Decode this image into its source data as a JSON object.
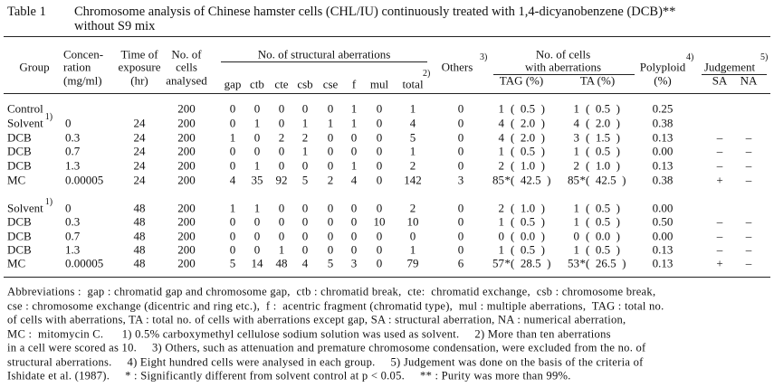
{
  "title": {
    "label": "Table 1",
    "lines": [
      "Chromosome analysis of Chinese hamster cells (CHL/IU) continuously treated with 1,4-dicyanobenzene (DCB)**",
      "without S9 mix"
    ]
  },
  "header": {
    "group": "Group",
    "concentration": [
      "Concen-",
      "ration",
      "(mg/ml)"
    ],
    "time": [
      "Time of",
      "exposure",
      "(hr)"
    ],
    "cells": [
      "No. of",
      "cells",
      "analysed"
    ],
    "aberrations": {
      "title": "No. of structural aberrations",
      "columns": [
        "gap",
        "ctb",
        "cte",
        "csb",
        "cse",
        "f",
        "mul",
        "total"
      ],
      "total_note": "2)"
    },
    "others": {
      "text": "Others",
      "note": "3)"
    },
    "cells_with": {
      "title": [
        "No. of cells",
        "with aberrations"
      ],
      "columns": [
        "TAG (%)",
        "TA (%)"
      ]
    },
    "polyploid": {
      "text": "Polyploid",
      "note": "4)",
      "unit": "(%)"
    },
    "judgement": {
      "text": "Judgement",
      "note": "5)",
      "columns": [
        "SA",
        "NA"
      ]
    }
  },
  "table": {
    "blocks": [
      [
        {
          "group": "Control",
          "cells": "200",
          "aberrations": [
            "0",
            "0",
            "0",
            "0",
            "0",
            "1",
            "0",
            "1"
          ],
          "others": "0",
          "tag": "1",
          "tag_pct": "(  0.5  )",
          "ta": "1",
          "ta_pct": "(  0.5  )",
          "polyploid": "0.25"
        },
        {
          "group": "Solvent",
          "group_note": "1)",
          "concentration": "0",
          "time": "24",
          "cells": "200",
          "aberrations": [
            "0",
            "1",
            "0",
            "1",
            "1",
            "1",
            "0",
            "4"
          ],
          "others": "0",
          "tag": "4",
          "tag_pct": "(  2.0  )",
          "ta": "4",
          "ta_pct": "(  2.0  )",
          "polyploid": "0.38"
        },
        {
          "group": "DCB",
          "concentration": "0.3",
          "time": "24",
          "cells": "200",
          "aberrations": [
            "1",
            "0",
            "2",
            "2",
            "0",
            "0",
            "0",
            "5"
          ],
          "others": "0",
          "tag": "4",
          "tag_pct": "(  2.0  )",
          "ta": "3",
          "ta_pct": "(  1.5  )",
          "polyploid": "0.13",
          "sa": "–",
          "na": "–"
        },
        {
          "group": "DCB",
          "concentration": "0.7",
          "time": "24",
          "cells": "200",
          "aberrations": [
            "0",
            "0",
            "0",
            "1",
            "0",
            "0",
            "0",
            "1"
          ],
          "others": "0",
          "tag": "1",
          "tag_pct": "(  0.5  )",
          "ta": "1",
          "ta_pct": "(  0.5  )",
          "polyploid": "0.00",
          "sa": "–",
          "na": "–"
        },
        {
          "group": "DCB",
          "concentration": "1.3",
          "time": "24",
          "cells": "200",
          "aberrations": [
            "0",
            "1",
            "0",
            "0",
            "0",
            "1",
            "0",
            "2"
          ],
          "others": "0",
          "tag": "2",
          "tag_pct": "(  1.0  )",
          "ta": "2",
          "ta_pct": "(  1.0  )",
          "polyploid": "0.13",
          "sa": "–",
          "na": "–"
        },
        {
          "group": "MC",
          "concentration": "0.00005",
          "time": "24",
          "cells": "200",
          "aberrations": [
            "4",
            "35",
            "92",
            "5",
            "2",
            "4",
            "0",
            "142"
          ],
          "others": "3",
          "tag": "85",
          "tag_pct": "*(  42.5  )",
          "ta": "85",
          "ta_pct": "*(  42.5  )",
          "polyploid": "0.38",
          "sa": "+",
          "na": "–"
        }
      ],
      [
        {
          "group": "Solvent",
          "group_note": "1)",
          "concentration": "0",
          "time": "48",
          "cells": "200",
          "aberrations": [
            "1",
            "1",
            "0",
            "0",
            "0",
            "0",
            "0",
            "2"
          ],
          "others": "0",
          "tag": "2",
          "tag_pct": "(  1.0  )",
          "ta": "1",
          "ta_pct": "(  0.5  )",
          "polyploid": "0.00"
        },
        {
          "group": "DCB",
          "concentration": "0.3",
          "time": "48",
          "cells": "200",
          "aberrations": [
            "0",
            "0",
            "0",
            "0",
            "0",
            "0",
            "10",
            "10"
          ],
          "others": "0",
          "tag": "1",
          "tag_pct": "(  0.5  )",
          "ta": "1",
          "ta_pct": "(  0.5  )",
          "polyploid": "0.50",
          "sa": "–",
          "na": "–"
        },
        {
          "group": "DCB",
          "concentration": "0.7",
          "time": "48",
          "cells": "200",
          "aberrations": [
            "0",
            "0",
            "0",
            "0",
            "0",
            "0",
            "0",
            "0"
          ],
          "others": "0",
          "tag": "0",
          "tag_pct": "(  0.0  )",
          "ta": "0",
          "ta_pct": "(  0.0  )",
          "polyploid": "0.00",
          "sa": "–",
          "na": "–"
        },
        {
          "group": "DCB",
          "concentration": "1.3",
          "time": "48",
          "cells": "200",
          "aberrations": [
            "0",
            "0",
            "1",
            "0",
            "0",
            "0",
            "0",
            "1"
          ],
          "others": "0",
          "tag": "1",
          "tag_pct": "(  0.5  )",
          "ta": "1",
          "ta_pct": "(  0.5  )",
          "polyploid": "0.13",
          "sa": "–",
          "na": "–"
        },
        {
          "group": "MC",
          "concentration": "0.00005",
          "time": "48",
          "cells": "200",
          "aberrations": [
            "5",
            "14",
            "48",
            "4",
            "5",
            "3",
            "0",
            "79"
          ],
          "others": "6",
          "tag": "57",
          "tag_pct": "*(  28.5  )",
          "ta": "53",
          "ta_pct": "*(  26.5  )",
          "polyploid": "0.13",
          "sa": "+",
          "na": "–"
        }
      ]
    ]
  },
  "footnotes": [
    "Abbreviations :  gap : chromatid gap and chromosome gap,  ctb : chromatid break,  cte:  chromatid exchange,  csb : chromosome break,",
    "cse : chromosome exchange (dicentric and ring etc.),  f :  acentric fragment (chromatid type),  mul : multiple aberrations,  TAG : total no.",
    "of cells with aberrations, TA : total no. of cells with aberrations except gap, SA : structural aberration, NA : numerical aberration,",
    "MC :  mitomycin C.      1) 0.5% carboxymethyl cellulose sodium solution was used as solvent.     2) More than ten aberrations",
    "in a cell were scored as 10.     3) Others, such as attenuation and premature chromosome condensation, were excluded from the no. of",
    "structural aberrations.     4) Eight hundred cells were analysed in each group.     5) Judgement was done on the basis of the criteria of",
    "Ishidate et al. (1987).     * : Significantly different from solvent control at p < 0.05.     ** : Purity was more than 99%."
  ]
}
